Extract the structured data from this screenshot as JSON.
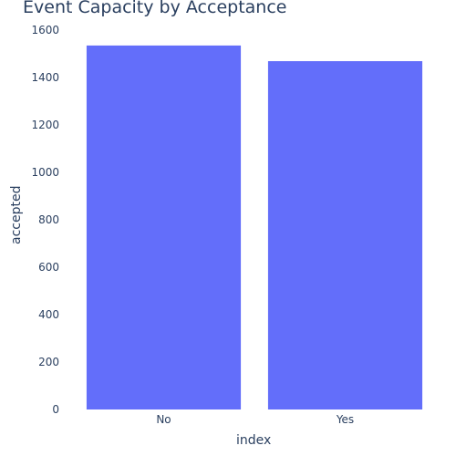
{
  "chart_data": {
    "type": "bar",
    "title": "Event Capacity by Acceptance",
    "xlabel": "index",
    "ylabel": "accepted",
    "categories": [
      "No",
      "Yes"
    ],
    "values": [
      1535,
      1469
    ],
    "ylim": [
      0,
      1600
    ],
    "yticks": [
      0,
      200,
      400,
      600,
      800,
      1000,
      1200,
      1400,
      1600
    ],
    "grid": false,
    "bar_color": "#636efa",
    "text_color": "#2a3f5f"
  }
}
